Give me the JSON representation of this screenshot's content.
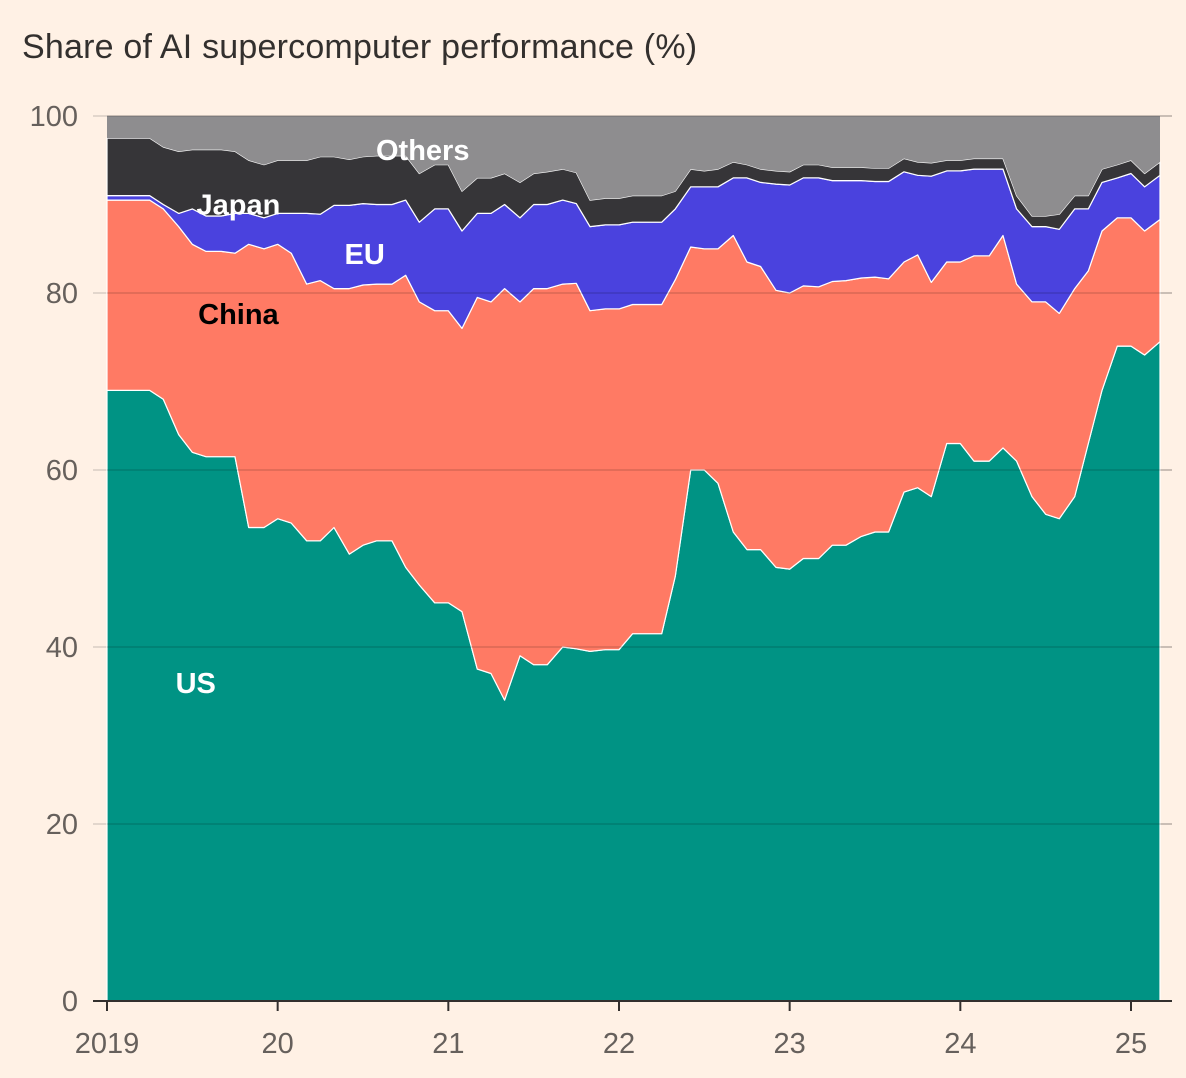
{
  "chart_data": {
    "type": "area",
    "stacked": true,
    "title": "Share of AI supercomputer performance (%)",
    "ylim": [
      0,
      100
    ],
    "xlim": [
      2019,
      2025.17
    ],
    "y_ticks": [
      0,
      20,
      40,
      60,
      80,
      100
    ],
    "x_ticks": [
      {
        "value": 2019,
        "label": "2019"
      },
      {
        "value": 2020,
        "label": "20"
      },
      {
        "value": 2021,
        "label": "21"
      },
      {
        "value": 2022,
        "label": "22"
      },
      {
        "value": 2023,
        "label": "23"
      },
      {
        "value": 2024,
        "label": "24"
      },
      {
        "value": 2025,
        "label": "25"
      }
    ],
    "grid": true,
    "x": [
      2019.0,
      2019.08,
      2019.17,
      2019.25,
      2019.33,
      2019.42,
      2019.5,
      2019.58,
      2019.67,
      2019.75,
      2019.83,
      2019.92,
      2020.0,
      2020.08,
      2020.17,
      2020.25,
      2020.33,
      2020.42,
      2020.5,
      2020.58,
      2020.67,
      2020.75,
      2020.83,
      2020.92,
      2021.0,
      2021.08,
      2021.17,
      2021.25,
      2021.33,
      2021.42,
      2021.5,
      2021.58,
      2021.67,
      2021.75,
      2021.83,
      2021.92,
      2022.0,
      2022.08,
      2022.17,
      2022.25,
      2022.33,
      2022.42,
      2022.5,
      2022.58,
      2022.67,
      2022.75,
      2022.83,
      2022.92,
      2023.0,
      2023.08,
      2023.17,
      2023.25,
      2023.33,
      2023.42,
      2023.5,
      2023.58,
      2023.67,
      2023.75,
      2023.83,
      2023.92,
      2024.0,
      2024.08,
      2024.17,
      2024.25,
      2024.33,
      2024.42,
      2024.5,
      2024.58,
      2024.67,
      2024.75,
      2024.83,
      2024.92,
      2025.0,
      2025.08,
      2025.17
    ],
    "series": [
      {
        "name": "US",
        "color": "#009384",
        "label_color": "#ffffff",
        "values": [
          69,
          69,
          69,
          69,
          68,
          64,
          62,
          61.5,
          61.5,
          61.5,
          53.5,
          53.5,
          54.5,
          54,
          52,
          52,
          53.5,
          50.5,
          51.5,
          52,
          52,
          49,
          47,
          45,
          45,
          44,
          37.5,
          37,
          34,
          39,
          38,
          38,
          40,
          39.8,
          39.5,
          39.7,
          39.7,
          41.5,
          41.5,
          41.5,
          48,
          60,
          60,
          58.5,
          53,
          51,
          51,
          49,
          48.8,
          50,
          50,
          51.5,
          51.5,
          52.5,
          53,
          53,
          57.5,
          58,
          57,
          63,
          63,
          61,
          61,
          62.5,
          61,
          57,
          55,
          54.5,
          57,
          63,
          69,
          74,
          74,
          73,
          74.5
        ]
      },
      {
        "name": "China",
        "color": "#ff7a64",
        "label_color": "#000000",
        "values": [
          21.5,
          21.5,
          21.5,
          21.5,
          21.5,
          23.5,
          23.5,
          23.2,
          23.2,
          23,
          32,
          31.5,
          31,
          30.5,
          29,
          29.4,
          27,
          30,
          29.4,
          29,
          29,
          33,
          32,
          33,
          33,
          32,
          42,
          42,
          46.5,
          40,
          42.5,
          42.5,
          41,
          41.3,
          38.5,
          38.5,
          38.5,
          37.2,
          37.2,
          37.2,
          33.5,
          25.2,
          25,
          26.5,
          33.5,
          32.5,
          32,
          31.3,
          31.2,
          30.8,
          30.7,
          29.8,
          29.9,
          29.2,
          28.8,
          28.6,
          26,
          26.3,
          24.2,
          20.5,
          20.5,
          23.2,
          23.2,
          24,
          20,
          22,
          24,
          23.2,
          23.5,
          19.5,
          18,
          14.5,
          14.5,
          14,
          13.8
        ]
      },
      {
        "name": "EU",
        "color": "#4a42de",
        "label_color": "#ffffff",
        "values": [
          0.5,
          0.5,
          0.5,
          0.5,
          0.5,
          1.5,
          4,
          4,
          4,
          4.5,
          3.5,
          3.5,
          3.5,
          4.5,
          8,
          7.5,
          9.4,
          9.4,
          9.2,
          9,
          9,
          8.5,
          9,
          11.5,
          11.5,
          11,
          9.5,
          10,
          9.5,
          9.5,
          9.5,
          9.5,
          9.5,
          9,
          9.5,
          9.5,
          9.5,
          9.3,
          9.3,
          9.3,
          8,
          6.8,
          7,
          7,
          6.5,
          9.5,
          9.5,
          12,
          12.2,
          12.2,
          12.3,
          11.4,
          11.3,
          11,
          10.8,
          11,
          10.2,
          9,
          12,
          10.3,
          10.3,
          9.8,
          9.8,
          7.5,
          8.5,
          8.5,
          8.5,
          9.5,
          9,
          7,
          5.5,
          4.5,
          5,
          5,
          5
        ]
      },
      {
        "name": "Japan",
        "color": "#363538",
        "label_color": "#ffffff",
        "values": [
          6.5,
          6.5,
          6.5,
          6.5,
          6.5,
          7,
          6.7,
          7.5,
          7.5,
          7,
          6,
          6,
          6,
          6,
          6,
          6.5,
          5.5,
          5.2,
          5.3,
          5.5,
          5.5,
          5,
          5.5,
          5,
          5,
          4.5,
          4,
          4,
          3.5,
          4,
          3.5,
          3.7,
          3.5,
          3.5,
          3,
          3,
          3,
          3,
          3,
          3,
          2,
          2,
          1.8,
          2,
          1.8,
          1.5,
          1.5,
          1.5,
          1.5,
          1.5,
          1.5,
          1.5,
          1.5,
          1.5,
          1.5,
          1.5,
          1.5,
          1.5,
          1.5,
          1.2,
          1.2,
          1.2,
          1.2,
          1.2,
          1.5,
          1.2,
          1.2,
          1.7,
          1.5,
          1.5,
          1.5,
          1.5,
          1.5,
          1.5,
          1.5
        ]
      },
      {
        "name": "Others",
        "color": "#8e8d8f",
        "label_color": "#ffffff",
        "values": [
          2.5,
          2.5,
          2.5,
          2.5,
          3.5,
          4,
          3.8,
          3.8,
          3.8,
          4,
          5,
          5.5,
          5,
          5,
          5,
          4.6,
          4.6,
          4.9,
          4.6,
          4.5,
          4.5,
          4.5,
          6.5,
          5.5,
          5.5,
          8.5,
          7,
          7,
          6.5,
          7.5,
          6.5,
          6.3,
          6,
          6.4,
          9.5,
          9.3,
          9.3,
          9,
          9,
          9,
          8.5,
          6,
          6.2,
          6,
          5.2,
          5.5,
          6,
          6.2,
          6.3,
          5.5,
          5.5,
          5.8,
          5.8,
          5.8,
          5.9,
          5.9,
          4.8,
          5.2,
          5.3,
          5,
          5,
          4.8,
          4.8,
          4.8,
          9,
          11.3,
          11.3,
          11.1,
          9,
          9,
          6,
          5.5,
          5,
          6.5,
          5.2
        ]
      }
    ]
  }
}
